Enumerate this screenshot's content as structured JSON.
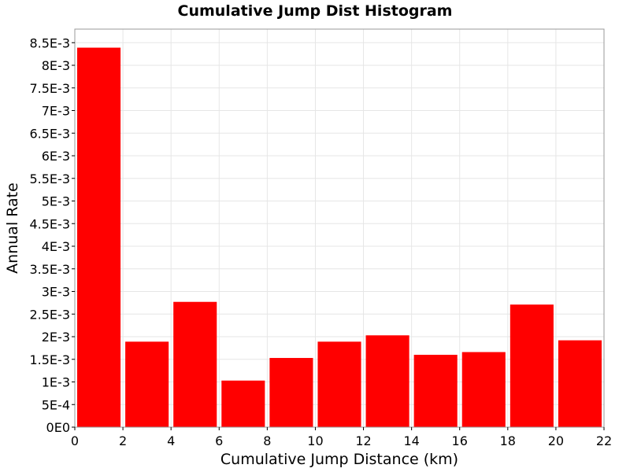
{
  "chart_data": {
    "type": "bar",
    "title": "Cumulative Jump Dist Histogram",
    "xlabel": "Cumulative Jump Distance (km)",
    "ylabel": "Annual Rate",
    "xlim": [
      0,
      22
    ],
    "ylim": [
      0,
      0.0088
    ],
    "grid": true,
    "bin_width": 2,
    "x": [
      1,
      3,
      5,
      7,
      9,
      11,
      13,
      15,
      17,
      19,
      21
    ],
    "values": [
      0.00839,
      0.00189,
      0.00277,
      0.00103,
      0.00153,
      0.00189,
      0.00203,
      0.0016,
      0.00166,
      0.00271,
      0.00192
    ],
    "bar_color": "#ff0000",
    "x_ticks": [
      0,
      2,
      4,
      6,
      8,
      10,
      12,
      14,
      16,
      18,
      20,
      22
    ],
    "x_tick_labels": [
      "0",
      "2",
      "4",
      "6",
      "8",
      "10",
      "12",
      "14",
      "16",
      "18",
      "20",
      "22"
    ],
    "y_ticks": [
      0,
      0.0005,
      0.001,
      0.0015,
      0.002,
      0.0025,
      0.003,
      0.0035,
      0.004,
      0.0045,
      0.005,
      0.0055,
      0.006,
      0.0065,
      0.007,
      0.0075,
      0.008,
      0.0085
    ],
    "y_tick_labels": [
      "0E0",
      "5E-4",
      "1E-3",
      "1.5E-3",
      "2E-3",
      "2.5E-3",
      "3E-3",
      "3.5E-3",
      "4E-3",
      "4.5E-3",
      "5E-3",
      "5.5E-3",
      "6E-3",
      "6.5E-3",
      "7E-3",
      "7.5E-3",
      "8E-3",
      "8.5E-3"
    ]
  }
}
